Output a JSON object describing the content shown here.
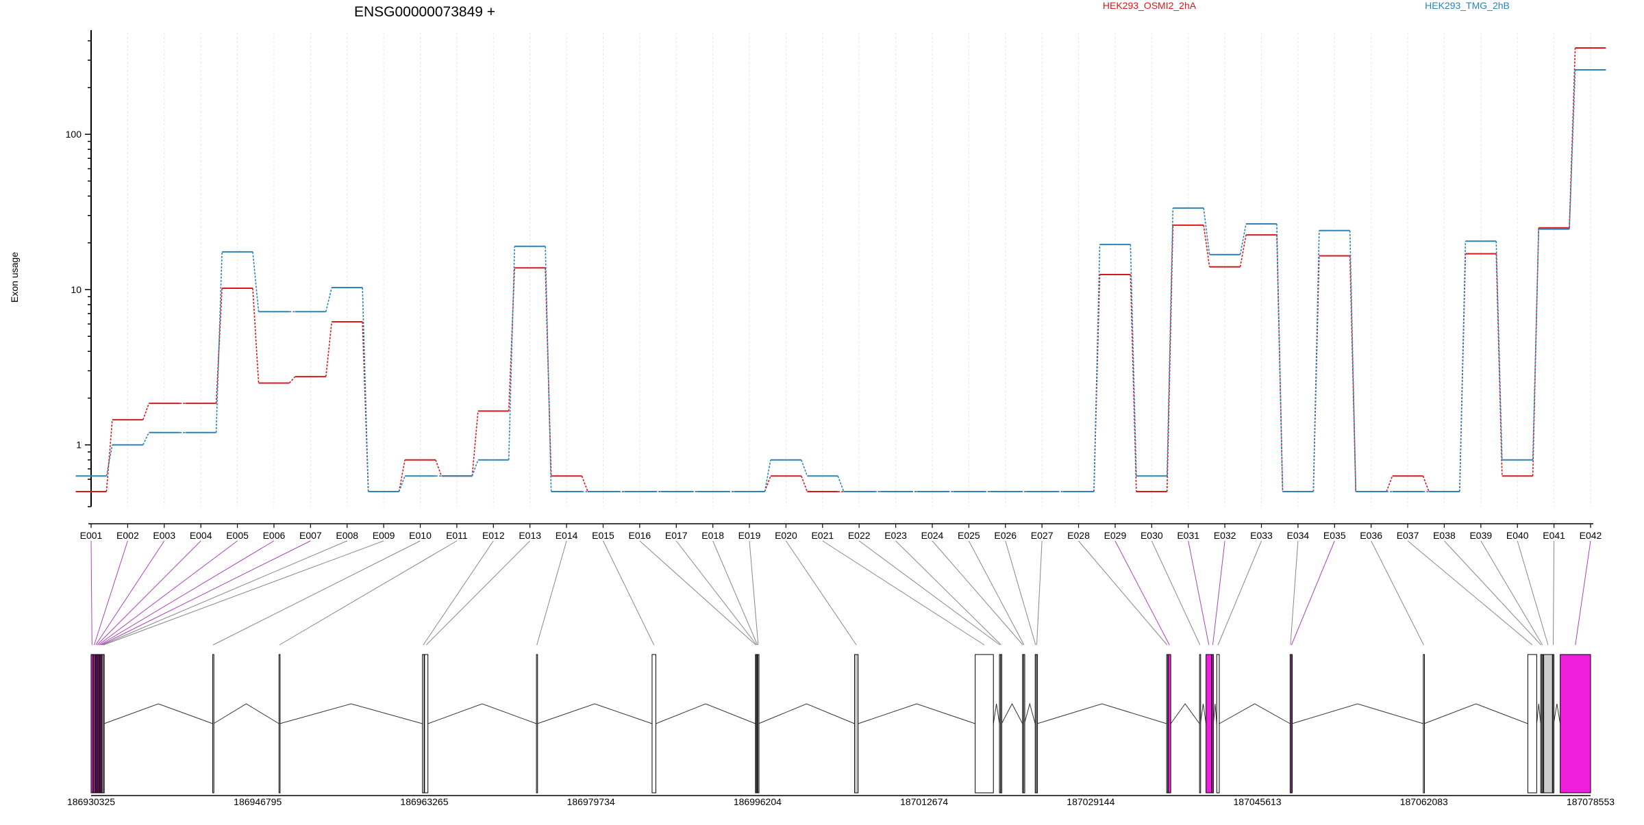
{
  "title": "ENSG00000073849 +",
  "ylabel": "Exon usage",
  "legend": {
    "placement": "top",
    "entries": [
      {
        "name": "HEK293_OSMI2_2hA",
        "color": "#d7191c"
      },
      {
        "name": "HEK293_TMG_2hB",
        "color": "#2b83ba"
      }
    ]
  },
  "chart_data": {
    "type": "line",
    "yscale": "log",
    "ylim": [
      0.4,
      450
    ],
    "yticks": [
      {
        "value": 1,
        "label": "1"
      },
      {
        "value": 10,
        "label": "10"
      },
      {
        "value": 100,
        "label": "100"
      }
    ],
    "grid": "vertical",
    "categories": [
      "E001",
      "E002",
      "E003",
      "E004",
      "E005",
      "E006",
      "E007",
      "E008",
      "E009",
      "E010",
      "E011",
      "E012",
      "E013",
      "E014",
      "E015",
      "E016",
      "E017",
      "E018",
      "E019",
      "E020",
      "E021",
      "E022",
      "E023",
      "E024",
      "E025",
      "E026",
      "E027",
      "E028",
      "E029",
      "E030",
      "E031",
      "E032",
      "E033",
      "E034",
      "E035",
      "E036",
      "E037",
      "E038",
      "E039",
      "E040",
      "E041",
      "E042"
    ],
    "series": [
      {
        "name": "HEK293_OSMI2_2hA",
        "color": "#d7191c",
        "values": [
          0.5,
          1.45,
          1.85,
          1.85,
          10.2,
          2.5,
          2.75,
          6.2,
          0.5,
          0.8,
          0.63,
          1.65,
          13.8,
          0.63,
          0.5,
          0.5,
          0.5,
          0.5,
          0.5,
          0.63,
          0.5,
          0.5,
          0.5,
          0.5,
          0.5,
          0.5,
          0.5,
          0.5,
          12.5,
          0.5,
          26,
          14,
          22.5,
          0.5,
          16.5,
          0.5,
          0.63,
          0.5,
          17,
          0.63,
          25,
          360
        ]
      },
      {
        "name": "HEK293_TMG_2hB",
        "color": "#2b83ba",
        "values": [
          0.63,
          1.0,
          1.2,
          1.2,
          17.5,
          7.2,
          7.2,
          10.3,
          0.5,
          0.63,
          0.63,
          0.8,
          19,
          0.5,
          0.5,
          0.5,
          0.5,
          0.5,
          0.5,
          0.8,
          0.63,
          0.5,
          0.5,
          0.5,
          0.5,
          0.5,
          0.5,
          0.5,
          19.5,
          0.63,
          33.5,
          16.8,
          26.5,
          0.5,
          24,
          0.5,
          0.5,
          0.5,
          20.5,
          0.8,
          24.5,
          260
        ]
      }
    ],
    "highlighted_exons": [
      "E001",
      "E002",
      "E003",
      "E004",
      "E005",
      "E006",
      "E007",
      "E029",
      "E031",
      "E032",
      "E035",
      "E042"
    ]
  },
  "gene_model": {
    "coord_start": 186930325,
    "coord_end": 187078553,
    "ticks": [
      "186930325",
      "186946795",
      "186963265",
      "186979734",
      "186996204",
      "187012674",
      "187029144",
      "187045613",
      "187062083",
      "187078553"
    ],
    "exons": [
      {
        "id": "E001",
        "start": 186930325,
        "end": 186930500,
        "fill": "#ee1edc"
      },
      {
        "id": "E002",
        "start": 186930560,
        "end": 186930700,
        "fill": "#ee1edc"
      },
      {
        "id": "E003",
        "start": 186930740,
        "end": 186930830,
        "fill": "#ee1edc"
      },
      {
        "id": "E004",
        "start": 186930870,
        "end": 186930960,
        "fill": "#ee1edc"
      },
      {
        "id": "E005",
        "start": 186931000,
        "end": 186931110,
        "fill": "#ee1edc"
      },
      {
        "id": "E006",
        "start": 186931150,
        "end": 186931240,
        "fill": "#ee1edc"
      },
      {
        "id": "E007",
        "start": 186931280,
        "end": 186931360,
        "fill": "#ee1edc"
      },
      {
        "id": "E008",
        "start": 186931400,
        "end": 186931480,
        "fill": "#ffffff"
      },
      {
        "id": "E009",
        "start": 186931520,
        "end": 186931600,
        "fill": "#ffffff"
      },
      {
        "id": "E010",
        "start": 186942350,
        "end": 186942420,
        "fill": "#ffffff"
      },
      {
        "id": "E011",
        "start": 186948900,
        "end": 186948970,
        "fill": "#ffffff"
      },
      {
        "id": "E012",
        "start": 186963080,
        "end": 186963240,
        "fill": "#ffffff"
      },
      {
        "id": "E013",
        "start": 186963290,
        "end": 186963620,
        "fill": "#ffffff"
      },
      {
        "id": "E014",
        "start": 186974350,
        "end": 186974430,
        "fill": "#ffffff"
      },
      {
        "id": "E015",
        "start": 186985780,
        "end": 186986150,
        "fill": "#ffffff"
      },
      {
        "id": "E016",
        "start": 186996000,
        "end": 186996060,
        "fill": "#ffffff"
      },
      {
        "id": "E017",
        "start": 186996080,
        "end": 186996140,
        "fill": "#ffffff"
      },
      {
        "id": "E018",
        "start": 186996160,
        "end": 186996220,
        "fill": "#ffffff"
      },
      {
        "id": "E019",
        "start": 186996240,
        "end": 186996300,
        "fill": "#ffffff"
      },
      {
        "id": "E020",
        "start": 187005800,
        "end": 187006150,
        "fill": "#cccccc"
      },
      {
        "id": "E021",
        "start": 187017720,
        "end": 187019520,
        "fill": "#ffffff"
      },
      {
        "id": "E022",
        "start": 187020120,
        "end": 187020200,
        "fill": "#ffffff"
      },
      {
        "id": "E023",
        "start": 187020240,
        "end": 187020330,
        "fill": "#ffffff"
      },
      {
        "id": "E024",
        "start": 187022400,
        "end": 187022470,
        "fill": "#ffffff"
      },
      {
        "id": "E025",
        "start": 187022510,
        "end": 187022580,
        "fill": "#ffffff"
      },
      {
        "id": "E026",
        "start": 187023650,
        "end": 187023740,
        "fill": "#ffffff"
      },
      {
        "id": "E027",
        "start": 187023770,
        "end": 187023840,
        "fill": "#ffffff"
      },
      {
        "id": "E028",
        "start": 187036650,
        "end": 187036730,
        "fill": "#ffffff"
      },
      {
        "id": "E029",
        "start": 187036800,
        "end": 187037050,
        "fill": "#ee1edc"
      },
      {
        "id": "E030",
        "start": 187039900,
        "end": 187039980,
        "fill": "#ffffff"
      },
      {
        "id": "E031",
        "start": 187040540,
        "end": 187041100,
        "fill": "#ee1edc"
      },
      {
        "id": "E032",
        "start": 187041140,
        "end": 187041270,
        "fill": "#ee1edc"
      },
      {
        "id": "E033",
        "start": 187041600,
        "end": 187041850,
        "fill": "#ffffff"
      },
      {
        "id": "E034",
        "start": 187048850,
        "end": 187048920,
        "fill": "#ffffff"
      },
      {
        "id": "E035",
        "start": 187048950,
        "end": 187049030,
        "fill": "#ee1edc"
      },
      {
        "id": "E036",
        "start": 187062020,
        "end": 187062090,
        "fill": "#ffffff"
      },
      {
        "id": "E037",
        "start": 187072350,
        "end": 187073230,
        "fill": "#ffffff"
      },
      {
        "id": "E038",
        "start": 187073620,
        "end": 187073690,
        "fill": "#ffffff"
      },
      {
        "id": "E039",
        "start": 187073760,
        "end": 187073830,
        "fill": "#ffffff"
      },
      {
        "id": "E040",
        "start": 187073920,
        "end": 187074780,
        "fill": "#cccccc"
      },
      {
        "id": "E041",
        "start": 187074820,
        "end": 187074900,
        "fill": "#cccccc"
      },
      {
        "id": "E042",
        "start": 187075550,
        "end": 187078553,
        "fill": "#ee1edc"
      }
    ]
  }
}
